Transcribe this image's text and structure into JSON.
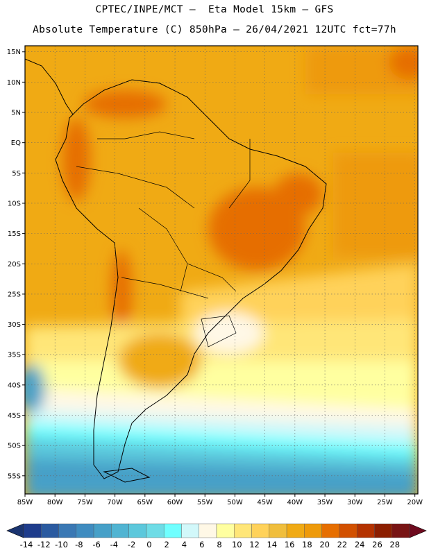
{
  "header": {
    "line1": "CPTEC/INPE/MCT –  Eta Model 15km – GFS",
    "line2": "Absolute Temperature (C) 850hPa – 26/04/2021 12UTC fct=77h"
  },
  "map": {
    "lon_range": [
      -85,
      -19.5
    ],
    "lat_range": [
      -58,
      16
    ],
    "lat_ticks": [
      "15N",
      "10N",
      "5N",
      "EQ",
      "5S",
      "10S",
      "15S",
      "20S",
      "25S",
      "30S",
      "35S",
      "40S",
      "45S",
      "50S",
      "55S"
    ],
    "lat_values": [
      15,
      10,
      5,
      0,
      -5,
      -10,
      -15,
      -20,
      -25,
      -30,
      -35,
      -40,
      -45,
      -50,
      -55
    ],
    "lon_ticks": [
      "85W",
      "80W",
      "75W",
      "70W",
      "65W",
      "60W",
      "55W",
      "50W",
      "45W",
      "40W",
      "35W",
      "30W",
      "25W",
      "20W"
    ],
    "lon_values": [
      -85,
      -80,
      -75,
      -70,
      -65,
      -60,
      -55,
      -50,
      -45,
      -40,
      -35,
      -30,
      -25,
      -20
    ],
    "grid": true,
    "background_field": "Absolute Temperature (C) 850hPa"
  },
  "colorbar": {
    "labels": [
      "-14",
      "-12",
      "-10",
      "-8",
      "-6",
      "-4",
      "-2",
      "0",
      "2",
      "4",
      "6",
      "8",
      "10",
      "12",
      "14",
      "16",
      "18",
      "20",
      "22",
      "24",
      "26",
      "28"
    ],
    "colors": [
      "#1e3c8c",
      "#2a5aa0",
      "#3a78b4",
      "#3f8cc0",
      "#46a0c8",
      "#50b4d2",
      "#5cc8dc",
      "#6edce6",
      "#70ffff",
      "#d2f8fa",
      "#fff8e6",
      "#ffffa0",
      "#ffe678",
      "#ffd25a",
      "#f0be3c",
      "#f0aa14",
      "#ee9a0a",
      "#e66e00",
      "#d25000",
      "#b43200",
      "#8c1e00",
      "#781414"
    ],
    "end_low": "#1a3470",
    "end_high": "#6e0a1e"
  }
}
